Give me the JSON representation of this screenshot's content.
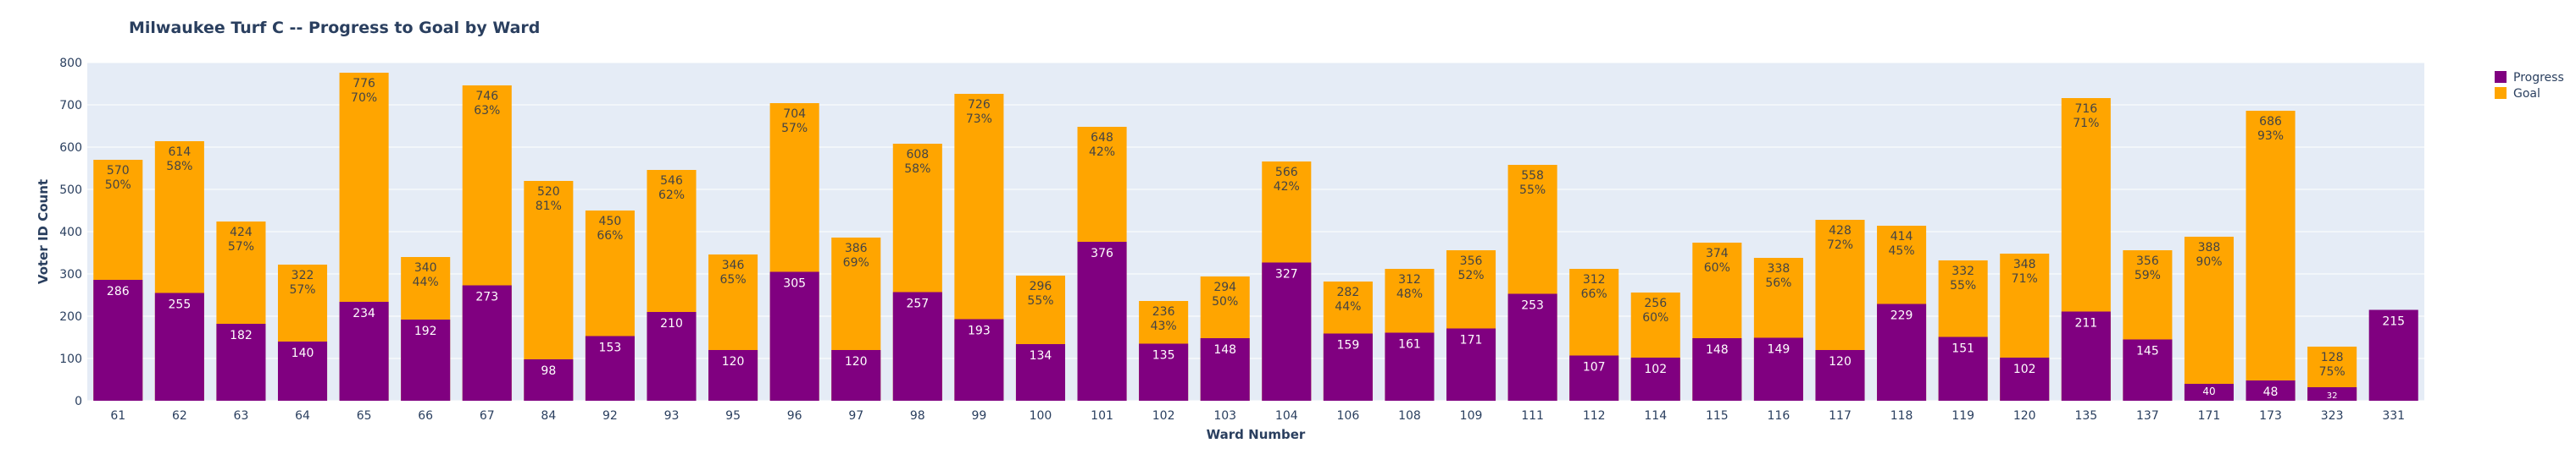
{
  "chart_data": {
    "type": "bar",
    "barmode": "overlay",
    "title": "Milwaukee Turf C -- Progress to Goal by Ward",
    "xlabel": "Ward Number",
    "ylabel": "Voter ID Count",
    "ylim": [
      0,
      800
    ],
    "yticks": [
      0,
      100,
      200,
      300,
      400,
      500,
      600,
      700,
      800
    ],
    "grid": true,
    "legend_position": "top-right",
    "categories": [
      "61",
      "62",
      "63",
      "64",
      "65",
      "66",
      "67",
      "84",
      "92",
      "93",
      "95",
      "96",
      "97",
      "98",
      "99",
      "100",
      "101",
      "102",
      "103",
      "104",
      "106",
      "108",
      "109",
      "111",
      "112",
      "114",
      "115",
      "116",
      "117",
      "118",
      "119",
      "120",
      "135",
      "137",
      "171",
      "173",
      "323",
      "331"
    ],
    "series": [
      {
        "name": "Goal",
        "color": "#FFA500",
        "values": [
          570,
          614,
          424,
          322,
          776,
          340,
          746,
          520,
          450,
          546,
          346,
          704,
          386,
          608,
          726,
          296,
          648,
          236,
          294,
          566,
          282,
          312,
          356,
          558,
          312,
          256,
          374,
          338,
          428,
          414,
          332,
          348,
          716,
          356,
          388,
          686,
          128,
          null
        ],
        "text_labels": [
          "570",
          "614",
          "424",
          "322",
          "776",
          "340",
          "746",
          "520",
          "450",
          "546",
          "346",
          "704",
          "386",
          "608",
          "726",
          "296",
          "648",
          "236",
          "294",
          "566",
          "282",
          "312",
          "356",
          "558",
          "312",
          "256",
          "374",
          "338",
          "428",
          "414",
          "332",
          "348",
          "716",
          "356",
          "388",
          "686",
          "128",
          ""
        ],
        "percent_labels": [
          "50%",
          "58%",
          "57%",
          "57%",
          "70%",
          "44%",
          "63%",
          "81%",
          "66%",
          "62%",
          "65%",
          "57%",
          "69%",
          "58%",
          "73%",
          "55%",
          "42%",
          "43%",
          "50%",
          "42%",
          "44%",
          "48%",
          "52%",
          "55%",
          "66%",
          "60%",
          "60%",
          "56%",
          "72%",
          "45%",
          "55%",
          "71%",
          "71%",
          "59%",
          "90%",
          "93%",
          "75%",
          ""
        ]
      },
      {
        "name": "Progress",
        "color": "#800080",
        "values": [
          286,
          255,
          182,
          140,
          234,
          192,
          273,
          98,
          153,
          210,
          120,
          305,
          120,
          257,
          193,
          134,
          376,
          135,
          148,
          327,
          159,
          161,
          171,
          253,
          107,
          102,
          148,
          149,
          120,
          229,
          151,
          102,
          211,
          145,
          40,
          48,
          32,
          215
        ],
        "text_labels": [
          "286",
          "255",
          "182",
          "140",
          "234",
          "192",
          "273",
          "98",
          "153",
          "210",
          "120",
          "305",
          "120",
          "257",
          "193",
          "134",
          "376",
          "135",
          "148",
          "327",
          "159",
          "161",
          "171",
          "253",
          "107",
          "102",
          "148",
          "149",
          "120",
          "229",
          "151",
          "102",
          "211",
          "145",
          "40",
          "48",
          "32",
          "215"
        ]
      }
    ]
  }
}
